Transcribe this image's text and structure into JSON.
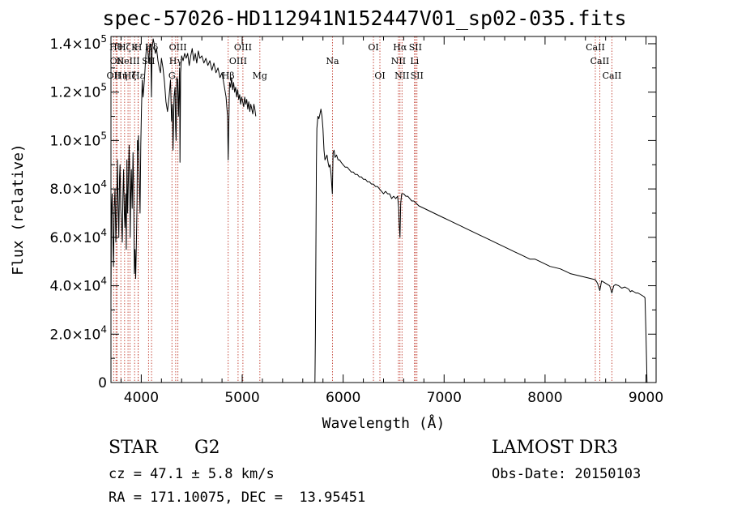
{
  "title": "spec-57026-HD112941N152447V01_sp02-035.fits",
  "chart_data": {
    "type": "line",
    "xlabel": "Wavelength (Å)",
    "ylabel": "Flux (relative)",
    "xlim": [
      3700,
      9100
    ],
    "ylim": [
      0,
      143000
    ],
    "x_ticks": [
      4000,
      5000,
      6000,
      7000,
      8000,
      9000
    ],
    "y_ticks": [
      {
        "value": 0,
        "mant": "0",
        "exp": ""
      },
      {
        "value": 20000,
        "mant": "2.0×10",
        "exp": "4"
      },
      {
        "value": 40000,
        "mant": "4.0×10",
        "exp": "4"
      },
      {
        "value": 60000,
        "mant": "6.0×10",
        "exp": "4"
      },
      {
        "value": 80000,
        "mant": "8.0×10",
        "exp": "4"
      },
      {
        "value": 100000,
        "mant": "1.0×10",
        "exp": "5"
      },
      {
        "value": 120000,
        "mant": "1.2×10",
        "exp": "5"
      },
      {
        "value": 140000,
        "mant": "1.4×10",
        "exp": "5"
      }
    ],
    "series": [
      {
        "name": "flux",
        "segments": [
          {
            "x": [
              3700,
              3705,
              3712,
              3718,
              3725,
              3732,
              3740,
              3748,
              3755,
              3763,
              3770,
              3778,
              3785,
              3790,
              3797,
              3805,
              3812,
              3818,
              3825,
              3832,
              3838,
              3845,
              3852,
              3858,
              3865,
              3872,
              3880,
              3886,
              3890,
              3895,
              3902,
              3910,
              3918,
              3925,
              3932,
              3938,
              3945,
              3952,
              3958,
              3962,
              3968,
              3972,
              3980,
              3988,
              3995,
              4002,
              4010,
              4018,
              4026,
              4035,
              4045,
              4055,
              4065,
              4075,
              4085,
              4095,
              4101,
              4108,
              4118,
              4128,
              4140,
              4152,
              4165,
              4178,
              4190,
              4200,
              4215,
              4230,
              4245,
              4260,
              4275,
              4290,
              4300,
              4308,
              4315,
              4325,
              4335,
              4340,
              4345,
              4352,
              4360,
              4368,
              4380,
              4384,
              4390,
              4400,
              4415,
              4430,
              4445,
              4460,
              4475,
              4490,
              4505,
              4520,
              4535,
              4550,
              4565,
              4580,
              4600,
              4620,
              4640,
              4660,
              4680,
              4700,
              4720,
              4740,
              4760,
              4780,
              4800,
              4820,
              4840,
              4855,
              4861,
              4867,
              4875,
              4885,
              4895,
              4905,
              4915,
              4925,
              4935,
              4945,
              4955,
              4965,
              4975,
              4985,
              4995,
              5005,
              5015,
              5025,
              5035,
              5045,
              5055,
              5065,
              5075,
              5085,
              5095,
              5105,
              5115,
              5125,
              5135
            ],
            "y": [
              35000,
              70000,
              78000,
              62000,
              48000,
              72000,
              80000,
              58000,
              68000,
              92000,
              75000,
              60000,
              85000,
              90000,
              72000,
              66000,
              58000,
              76000,
              88000,
              70000,
              64000,
              78000,
              55000,
              92000,
              70000,
              82000,
              98000,
              86000,
              60000,
              75000,
              88000,
              72000,
              95000,
              80000,
              45000,
              55000,
              43000,
              58000,
              75000,
              100000,
              96000,
              102000,
              85000,
              70000,
              98000,
              112000,
              125000,
              118000,
              122000,
              128000,
              135000,
              140000,
              137000,
              132000,
              140000,
              139000,
              118000,
              138000,
              142000,
              140000,
              136000,
              138000,
              133000,
              130000,
              128000,
              134000,
              130000,
              124000,
              116000,
              112000,
              118000,
              125000,
              108000,
              115000,
              96000,
              118000,
              122000,
              105000,
              100000,
              126000,
              125000,
              110000,
              130000,
              91000,
              128000,
              135000,
              133000,
              136000,
              134000,
              136000,
              131000,
              135000,
              138000,
              133000,
              136000,
              132000,
              137000,
              134000,
              135000,
              132000,
              134000,
              131000,
              133000,
              129000,
              132000,
              128000,
              130000,
              126000,
              128000,
              123000,
              118000,
              110000,
              92000,
              105000,
              124000,
              122000,
              126000,
              121000,
              124000,
              120000,
              122000,
              118000,
              121000,
              117000,
              119000,
              115000,
              118000,
              116000,
              114000,
              118000,
              115000,
              117000,
              113000,
              116000,
              112000,
              115000,
              113000,
              111000,
              115000,
              113000,
              110000
            ]
          },
          {
            "x": [
              5720,
              5725,
              5730,
              5735,
              5740,
              5750,
              5760,
              5770,
              5780,
              5790,
              5800,
              5810,
              5820,
              5830,
              5840,
              5850,
              5860,
              5870,
              5880,
              5893,
              5900,
              5910,
              5920,
              5935,
              5950,
              5965,
              5980,
              6000,
              6020,
              6040,
              6060,
              6080,
              6100,
              6120,
              6140,
              6160,
              6180,
              6200,
              6220,
              6240,
              6260,
              6280,
              6300,
              6320,
              6340,
              6360,
              6380,
              6400,
              6420,
              6440,
              6460,
              6480,
              6500,
              6520,
              6540,
              6550,
              6556,
              6563,
              6570,
              6580,
              6600,
              6620,
              6640,
              6660,
              6680,
              6700,
              6750,
              6800,
              6850,
              6900,
              6950,
              7000,
              7050,
              7100,
              7150,
              7200,
              7250,
              7300,
              7350,
              7400,
              7450,
              7500,
              7550,
              7600,
              7650,
              7700,
              7750,
              7800,
              7850,
              7900,
              7950,
              8000,
              8050,
              8100,
              8150,
              8200,
              8250,
              8300,
              8350,
              8400,
              8450,
              8498,
              8520,
              8542,
              8560,
              8580,
              8600,
              8620,
              8640,
              8662,
              8680,
              8700,
              8730,
              8760,
              8790,
              8810,
              8830,
              8845,
              8860,
              8880,
              8900,
              8920,
              8940,
              8960,
              8980,
              8990,
              9000,
              9010
            ],
            "y": [
              0,
              20000,
              55000,
              90000,
              105000,
              110000,
              109000,
              111000,
              113000,
              110000,
              105000,
              96000,
              92000,
              93000,
              94000,
              91000,
              89000,
              90000,
              86000,
              78000,
              95000,
              96000,
              93000,
              94000,
              92000,
              92000,
              91000,
              90000,
              89000,
              89000,
              88000,
              87000,
              87000,
              86000,
              86000,
              85000,
              85000,
              84000,
              84000,
              83000,
              83000,
              82000,
              82000,
              81000,
              81000,
              80000,
              79000,
              78000,
              79000,
              78000,
              78000,
              76000,
              77000,
              76000,
              77000,
              72000,
              65000,
              60000,
              74000,
              78000,
              78000,
              77000,
              77000,
              76000,
              75000,
              75000,
              73000,
              72000,
              71000,
              70000,
              69000,
              68000,
              67000,
              66000,
              65000,
              64000,
              63000,
              62000,
              61000,
              60000,
              59000,
              58000,
              57000,
              56000,
              55000,
              54000,
              53000,
              52000,
              51000,
              51000,
              50000,
              49000,
              48000,
              47500,
              47000,
              46000,
              45000,
              44500,
              44000,
              43500,
              43000,
              42500,
              41000,
              38000,
              42000,
              41500,
              41000,
              40500,
              40000,
              37000,
              40000,
              40500,
              40000,
              39000,
              39500,
              39000,
              38500,
              37500,
              38000,
              37500,
              37000,
              37000,
              36500,
              36000,
              35500,
              35000,
              20000,
              0
            ]
          }
        ]
      }
    ],
    "lines": [
      {
        "wl": 3727,
        "row": 2,
        "label": "OII"
      },
      {
        "wl": 3750,
        "row": 0,
        "label": "Hθ"
      },
      {
        "wl": 3760,
        "row": 1,
        "label": "OII"
      },
      {
        "wl": 3798,
        "row": 2,
        "label": "Hη"
      },
      {
        "wl": 3835,
        "row": 0,
        "label": "Hζ"
      },
      {
        "wl": 3869,
        "row": 1,
        "label": "NeIII"
      },
      {
        "wl": 3889,
        "row": 2,
        "label": "Hζ"
      },
      {
        "wl": 3934,
        "row": 0,
        "label": "K"
      },
      {
        "wl": 3969,
        "row": 0,
        "label": "H"
      },
      {
        "wl": 3970,
        "row": 2,
        "label": "Hε"
      },
      {
        "wl": 4072,
        "row": 1,
        "label": "SII"
      },
      {
        "wl": 4102,
        "row": 0,
        "label": "Hδ"
      },
      {
        "wl": 4304,
        "row": 2,
        "label": "G"
      },
      {
        "wl": 4341,
        "row": 1,
        "label": "Hγ"
      },
      {
        "wl": 4363,
        "row": 0,
        "label": "OIII"
      },
      {
        "wl": 4861,
        "row": 2,
        "label": "Hβ"
      },
      {
        "wl": 4959,
        "row": 1,
        "label": "OIII"
      },
      {
        "wl": 5007,
        "row": 0,
        "label": "OIII"
      },
      {
        "wl": 5175,
        "row": 2,
        "label": "Mg"
      },
      {
        "wl": 5894,
        "row": 1,
        "label": "Na"
      },
      {
        "wl": 6300,
        "row": 0,
        "label": "OI"
      },
      {
        "wl": 6364,
        "row": 2,
        "label": "OI"
      },
      {
        "wl": 6548,
        "row": 1,
        "label": "NII"
      },
      {
        "wl": 6563,
        "row": 0,
        "label": "Hα"
      },
      {
        "wl": 6583,
        "row": 2,
        "label": "NII"
      },
      {
        "wl": 6707,
        "row": 1,
        "label": "Li"
      },
      {
        "wl": 6716,
        "row": 0,
        "label": "SII"
      },
      {
        "wl": 6731,
        "row": 2,
        "label": "SII"
      },
      {
        "wl": 8498,
        "row": 0,
        "label": "CaII"
      },
      {
        "wl": 8542,
        "row": 1,
        "label": "CaII"
      },
      {
        "wl": 8662,
        "row": 2,
        "label": "CaII"
      }
    ]
  },
  "info": {
    "object_type": "STAR",
    "subclass": "G2",
    "survey": "LAMOST DR3",
    "redshift": "cz = 47.1 ± 5.8 km/s",
    "obs_date": "Obs-Date: 20150103",
    "coords": "RA = 171.10075, DEC =  13.95451"
  }
}
